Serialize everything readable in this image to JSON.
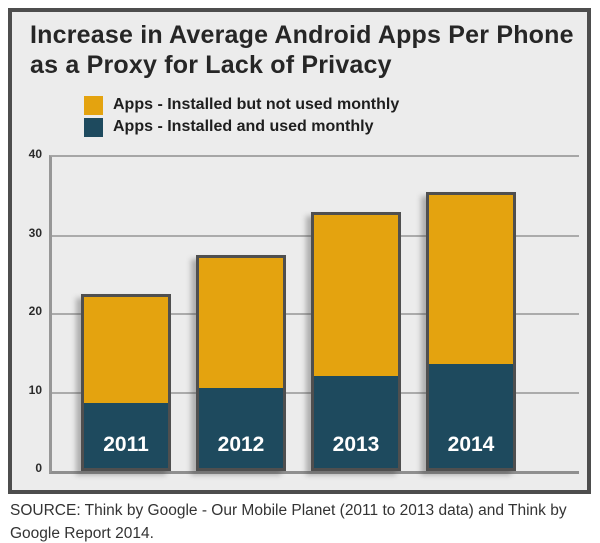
{
  "title": "Increase in Average Android Apps Per Phone as a Proxy for Lack of Privacy",
  "legend": {
    "items": [
      {
        "label": "Apps - Installed but not used monthly",
        "color": "#E4A30F"
      },
      {
        "label": "Apps - Installed and used monthly",
        "color": "#1E4A5E"
      }
    ]
  },
  "source_note": "SOURCE: Think by Google - Our Mobile Planet (2011 to 2013 data) and Think by Google Report 2014.",
  "colors": {
    "page_background": "#FFFFFF",
    "panel_background": "#ECECEC",
    "frame_border": "#4D4D4D",
    "gridline": "#ABABAB",
    "axis": "#8F8F8F",
    "bar_border": "#4F4F4F",
    "title_text": "#262626",
    "bar_label_text": "#FFFFFF",
    "not_used_orange": "#E4A30F",
    "used_teal": "#1E4A5E"
  },
  "chart_data": {
    "type": "bar",
    "stacked": true,
    "title": "Increase in Average Android Apps Per Phone as a Proxy for Lack of Privacy",
    "categories": [
      "2011",
      "2012",
      "2013",
      "2014"
    ],
    "series": [
      {
        "name": "Apps - Installed and used monthly",
        "color": "#1E4A5E",
        "values": [
          9,
          11,
          12.5,
          14
        ]
      },
      {
        "name": "Apps - Installed but not used monthly",
        "color": "#E4A30F",
        "values": [
          13.5,
          16.5,
          20.5,
          21.5
        ]
      }
    ],
    "totals": [
      22.5,
      27.5,
      33,
      35.5
    ],
    "xlabel": "",
    "ylabel": "",
    "ylim": [
      0,
      40
    ],
    "yticks": [
      0,
      10,
      20,
      30,
      40
    ],
    "grid": true,
    "legend_position": "top"
  }
}
